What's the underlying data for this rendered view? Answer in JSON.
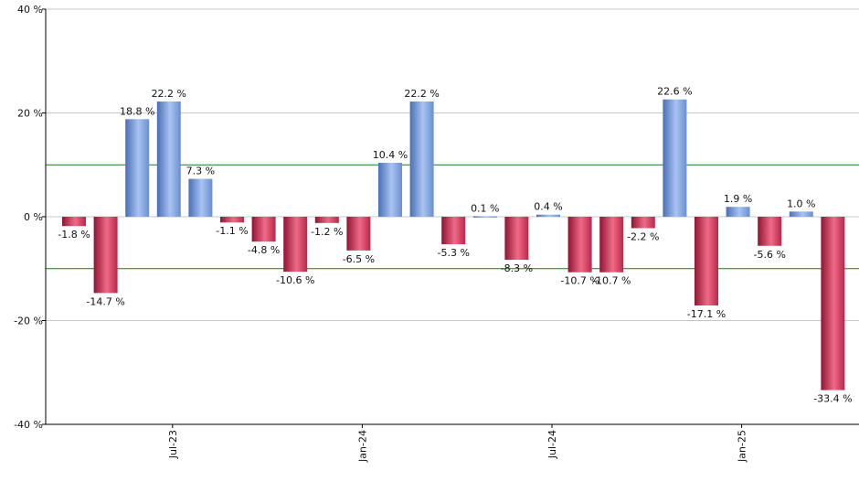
{
  "chart_data": {
    "type": "bar",
    "title": "",
    "xlabel": "",
    "ylabel": "",
    "ylim": [
      -40,
      40
    ],
    "y_ticks": [
      -40,
      -20,
      0,
      20,
      40
    ],
    "y_tick_labels": [
      "-40 %",
      "-20 %",
      "0 %",
      "20 %",
      "40 %"
    ],
    "reference_lines": [
      10,
      -10
    ],
    "x_tick_labels": [
      {
        "label": "Jul-23",
        "bar_index": 3
      },
      {
        "label": "Jan-24",
        "bar_index": 9
      },
      {
        "label": "Jul-24",
        "bar_index": 15
      },
      {
        "label": "Jan-25",
        "bar_index": 21
      }
    ],
    "values": [
      -1.8,
      -14.7,
      18.8,
      22.2,
      7.3,
      -1.1,
      -4.8,
      -10.6,
      -1.2,
      -6.5,
      10.4,
      22.2,
      -5.3,
      0.1,
      -8.3,
      0.4,
      -10.7,
      -10.7,
      -2.2,
      22.6,
      -17.1,
      1.9,
      -5.6,
      1.0,
      -33.4
    ],
    "labels": [
      "-1.8 %",
      "-14.7 %",
      "18.8 %",
      "22.2 %",
      "7.3 %",
      "-1.1 %",
      "-4.8 %",
      "-10.6 %",
      "-1.2 %",
      "-6.5 %",
      "10.4 %",
      "22.2 %",
      "-5.3 %",
      "0.1 %",
      "-8.3 %",
      "0.4 %",
      "-10.7 %",
      "-10.7 %",
      "-2.2 %",
      "22.6 %",
      "-17.1 %",
      "1.9 %",
      "-5.6 %",
      "1.0 %",
      "-33.4 %"
    ],
    "colors": {
      "positive_dark": "#4a6fb5",
      "positive_light": "#a9c3f2",
      "negative_dark": "#8f1532",
      "negative_light": "#f06a88",
      "gridline": "#c8c8c8",
      "reference_line": "#1a7a1a",
      "axis": "#000000"
    }
  }
}
